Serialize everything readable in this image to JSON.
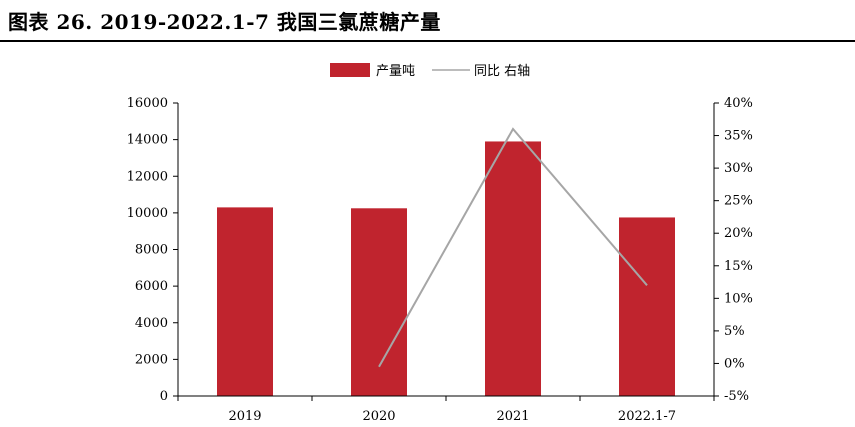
{
  "figure": {
    "title": "图表 26. 2019-2022.1-7 我国三氯蔗糖产量"
  },
  "legend": {
    "bar_label": "产量吨",
    "line_label": "同比 右轴"
  },
  "colors": {
    "bar": "#C0242E",
    "line": "#A6A6A6",
    "axis": "#000000"
  },
  "chart_data": {
    "type": "bar",
    "categories": [
      "2019",
      "2020",
      "2021",
      "2022.1-7"
    ],
    "series": [
      {
        "name": "产量吨",
        "type": "bar",
        "axis": "left",
        "values": [
          10300,
          10250,
          13900,
          9750
        ]
      },
      {
        "name": "同比 右轴",
        "type": "line",
        "axis": "right",
        "values": [
          null,
          -0.005,
          0.36,
          0.12
        ]
      }
    ],
    "y_left": {
      "min": 0,
      "max": 16000,
      "step": 2000
    },
    "y_right": {
      "min": -0.05,
      "max": 0.4,
      "step": 0.05,
      "format": "percent"
    },
    "legend_position": "top-center",
    "grid": false
  }
}
